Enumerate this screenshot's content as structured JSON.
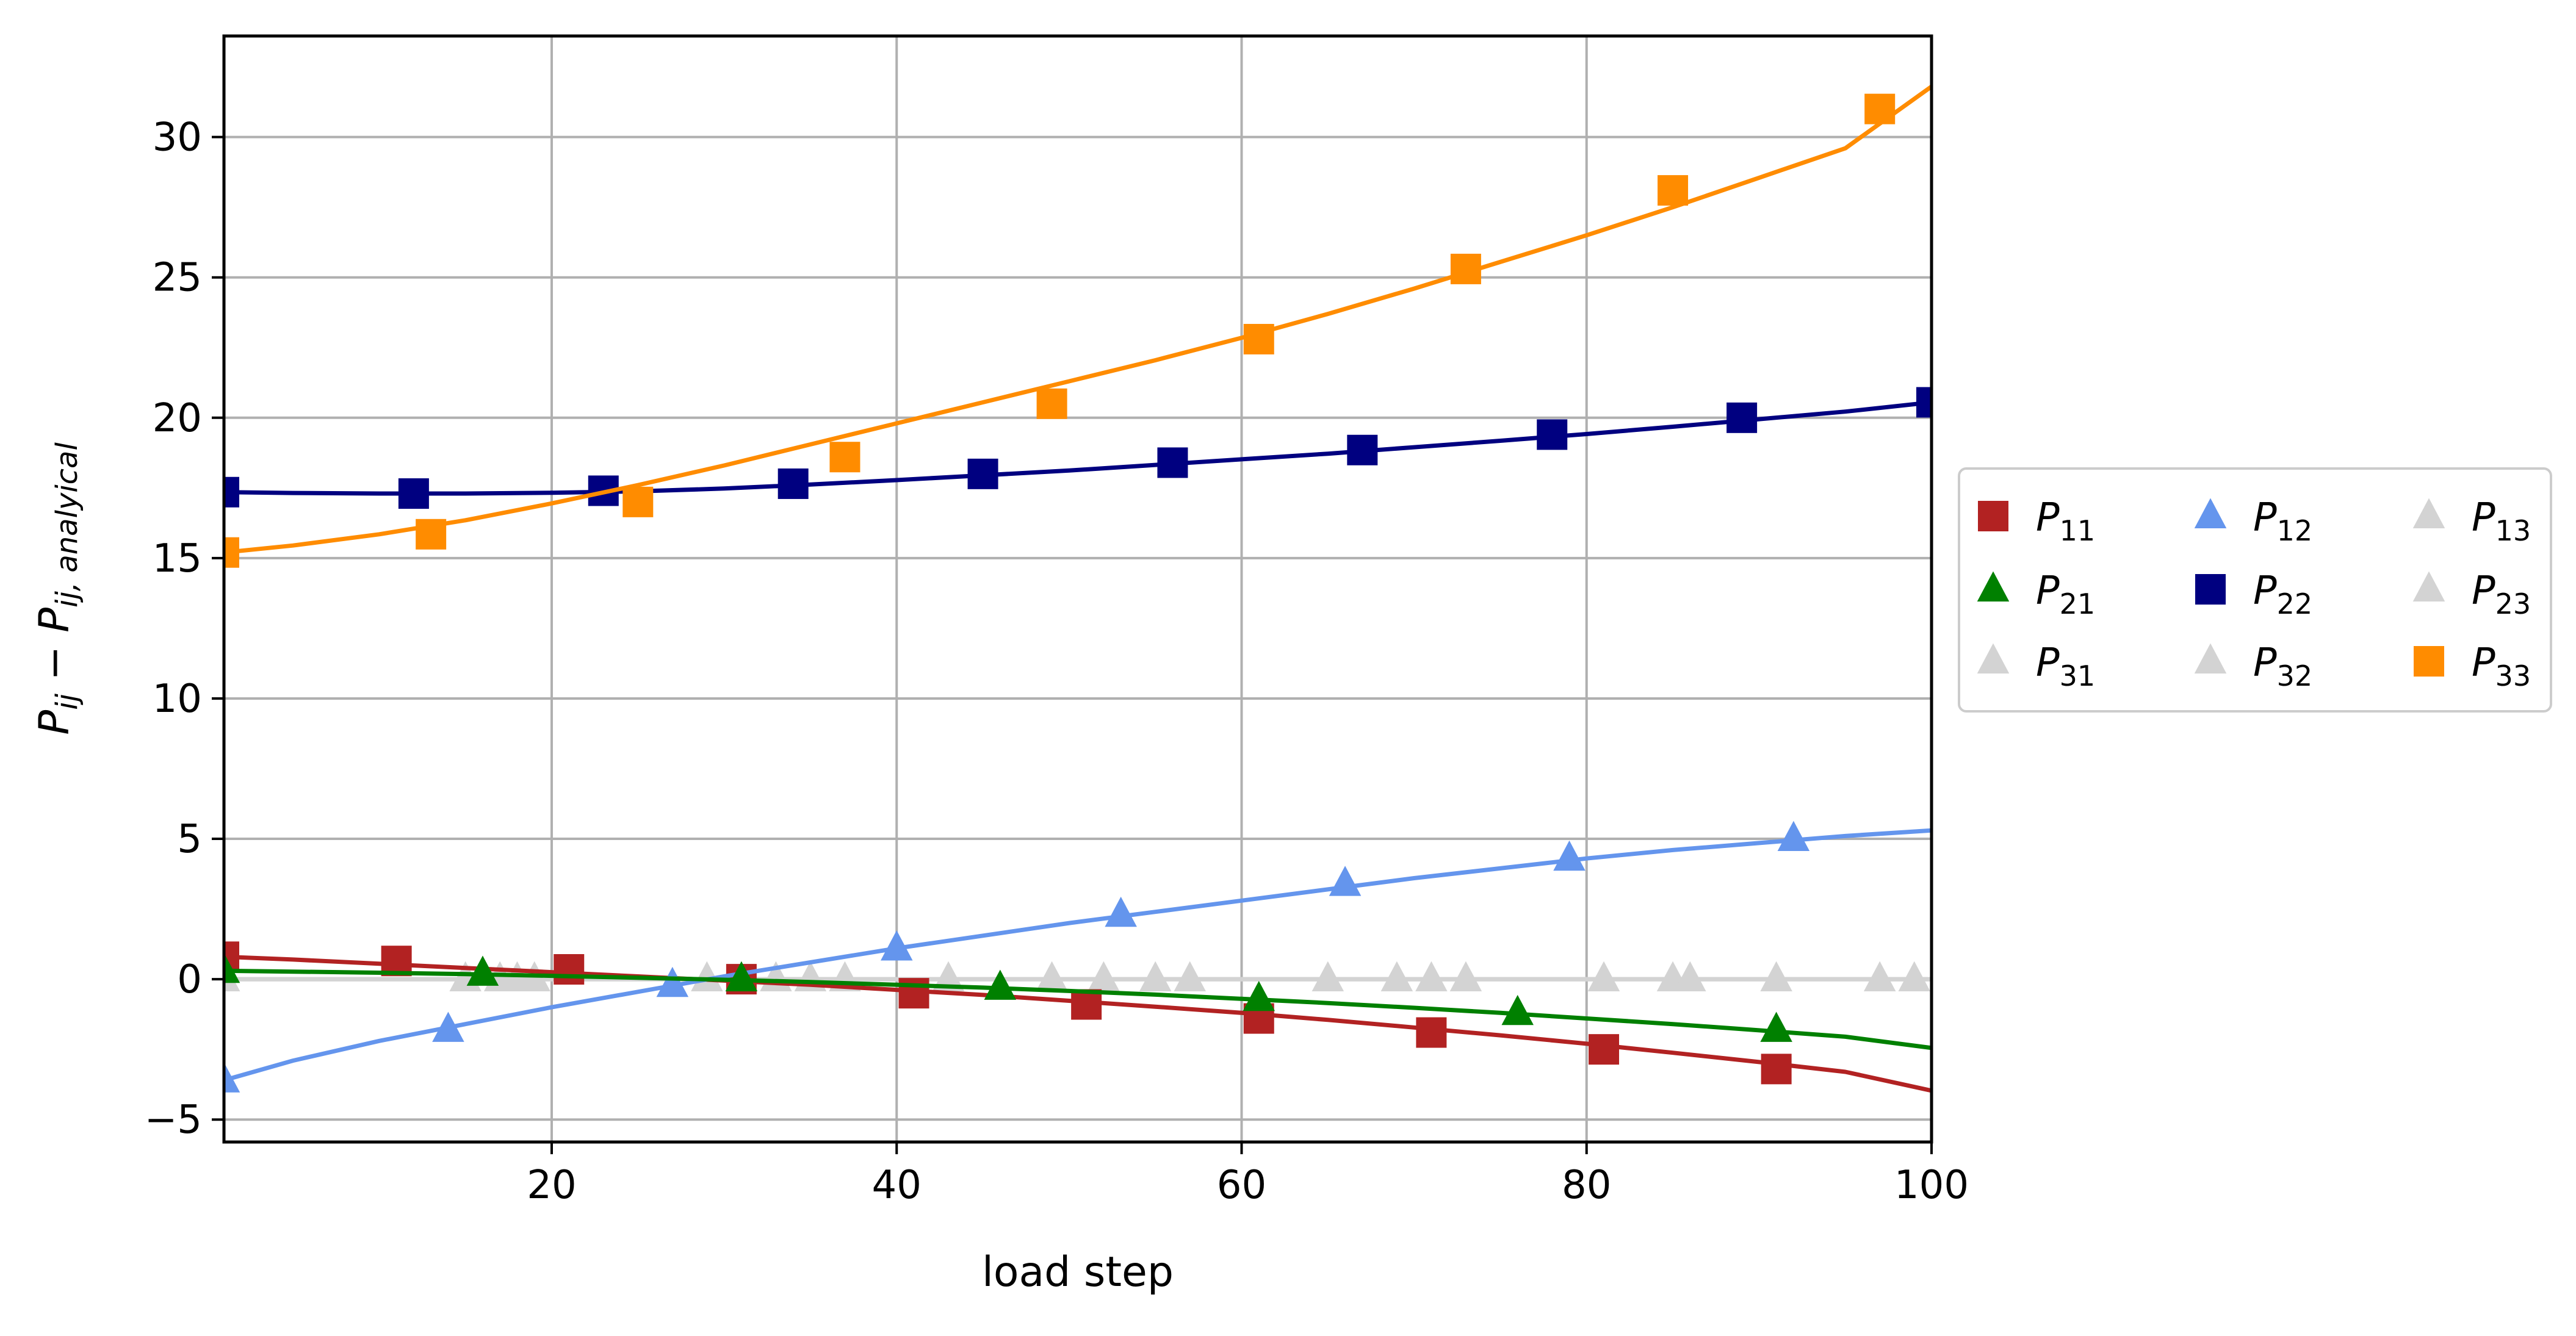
{
  "chart_data": {
    "type": "line",
    "xlabel": "load step",
    "ylabel": "P_ij − P_ij,analyical",
    "xlim": [
      1,
      100
    ],
    "ylim": [
      -5.8,
      33.6
    ],
    "xticks": [
      20,
      40,
      60,
      80,
      100
    ],
    "yticks": [
      -5,
      0,
      5,
      10,
      15,
      20,
      25,
      30
    ],
    "grid": true,
    "legend_placement": "right, outside plot area, 3 columns",
    "legend_columns": 3,
    "x": [
      1,
      5,
      10,
      15,
      20,
      25,
      30,
      35,
      40,
      45,
      50,
      55,
      60,
      65,
      70,
      75,
      80,
      85,
      90,
      95,
      100
    ],
    "series": [
      {
        "name": "P11",
        "label_main": "P",
        "label_sub": "11",
        "color": "#b22222",
        "marker": "square",
        "values": [
          0.8,
          0.7,
          0.55,
          0.4,
          0.25,
          0.1,
          -0.05,
          -0.2,
          -0.38,
          -0.56,
          -0.77,
          -0.98,
          -1.2,
          -1.45,
          -1.72,
          -2.0,
          -2.3,
          -2.62,
          -2.95,
          -3.3,
          -3.97
        ],
        "markers_x": [
          1,
          11,
          21,
          31,
          41,
          51,
          61,
          71,
          81,
          91
        ],
        "markers_y": [
          0.8,
          0.65,
          0.35,
          0.0,
          -0.5,
          -0.9,
          -1.4,
          -1.9,
          -2.5,
          -3.2
        ]
      },
      {
        "name": "P12",
        "label_main": "P",
        "label_sub": "12",
        "color": "#6495ed",
        "marker": "triangle",
        "values": [
          -3.6,
          -2.9,
          -2.2,
          -1.6,
          -1.0,
          -0.45,
          0.1,
          0.6,
          1.1,
          1.55,
          2.0,
          2.4,
          2.8,
          3.2,
          3.6,
          3.95,
          4.3,
          4.6,
          4.85,
          5.1,
          5.3
        ],
        "markers_x": [
          1,
          14,
          27,
          40,
          53,
          66,
          79,
          92
        ],
        "markers_y": [
          -3.6,
          -1.8,
          -0.2,
          1.1,
          2.3,
          3.4,
          4.3,
          5.0
        ]
      },
      {
        "name": "P13",
        "label_main": "P",
        "label_sub": "13",
        "color": "#d3d3d3",
        "marker": "triangle",
        "values": [
          0,
          0,
          0,
          0,
          0,
          0,
          0,
          0,
          0,
          0,
          0,
          0,
          0,
          0,
          0,
          0,
          0,
          0,
          0,
          0,
          0
        ],
        "markers_x": [
          1,
          15,
          29,
          43,
          57,
          71,
          85,
          99
        ],
        "markers_y": [
          0,
          0,
          0,
          0,
          0,
          0,
          0,
          0
        ]
      },
      {
        "name": "P21",
        "label_main": "P",
        "label_sub": "21",
        "color": "#008000",
        "marker": "triangle",
        "values": [
          0.3,
          0.27,
          0.23,
          0.18,
          0.12,
          0.05,
          -0.02,
          -0.1,
          -0.2,
          -0.3,
          -0.42,
          -0.55,
          -0.7,
          -0.85,
          -1.02,
          -1.2,
          -1.4,
          -1.6,
          -1.82,
          -2.05,
          -2.45
        ],
        "markers_x": [
          1,
          16,
          31,
          46,
          61,
          76,
          91
        ],
        "markers_y": [
          0.3,
          0.2,
          0.0,
          -0.3,
          -0.7,
          -1.2,
          -1.8
        ]
      },
      {
        "name": "P22",
        "label_main": "P",
        "label_sub": "22",
        "color": "#000080",
        "marker": "square",
        "values": [
          17.35,
          17.32,
          17.3,
          17.3,
          17.33,
          17.38,
          17.48,
          17.62,
          17.78,
          17.95,
          18.12,
          18.32,
          18.52,
          18.72,
          18.95,
          19.18,
          19.42,
          19.68,
          19.95,
          20.22,
          20.55
        ],
        "markers_x": [
          1,
          12,
          23,
          34,
          45,
          56,
          67,
          78,
          89,
          100
        ],
        "markers_y": [
          17.35,
          17.3,
          17.4,
          17.65,
          18.0,
          18.4,
          18.85,
          19.4,
          20.0,
          20.55
        ]
      },
      {
        "name": "P23",
        "label_main": "P",
        "label_sub": "23",
        "color": "#d3d3d3",
        "marker": "triangle",
        "values": [
          0,
          0,
          0,
          0,
          0,
          0,
          0,
          0,
          0,
          0,
          0,
          0,
          0,
          0,
          0,
          0,
          0,
          0,
          0,
          0,
          0
        ],
        "markers_x": [
          1,
          18,
          35,
          52,
          69,
          86
        ],
        "markers_y": [
          0,
          0,
          0,
          0,
          0,
          0
        ]
      },
      {
        "name": "P31",
        "label_main": "P",
        "label_sub": "31",
        "color": "#d3d3d3",
        "marker": "triangle",
        "values": [
          0,
          0,
          0,
          0,
          0,
          0,
          0,
          0,
          0,
          0,
          0,
          0,
          0,
          0,
          0,
          0,
          0,
          0,
          0,
          0,
          0
        ],
        "markers_x": [
          1,
          17,
          33,
          49,
          65,
          81,
          97
        ],
        "markers_y": [
          0,
          0,
          0,
          0,
          0,
          0,
          0
        ]
      },
      {
        "name": "P32",
        "label_main": "P",
        "label_sub": "32",
        "color": "#d3d3d3",
        "marker": "triangle",
        "values": [
          0,
          0,
          0,
          0,
          0,
          0,
          0,
          0,
          0,
          0,
          0,
          0,
          0,
          0,
          0,
          0,
          0,
          0,
          0,
          0,
          0
        ],
        "markers_x": [
          1,
          19,
          37,
          55,
          73,
          91
        ],
        "markers_y": [
          0,
          0,
          0,
          0,
          0,
          0
        ]
      },
      {
        "name": "P33",
        "label_main": "P",
        "label_sub": "33",
        "color": "#ff8c00",
        "marker": "square",
        "values": [
          15.2,
          15.45,
          15.85,
          16.35,
          16.95,
          17.6,
          18.3,
          19.05,
          19.8,
          20.55,
          21.3,
          22.05,
          22.85,
          23.7,
          24.6,
          25.55,
          26.5,
          27.5,
          28.55,
          29.6,
          31.8
        ],
        "markers_x": [
          1,
          13,
          25,
          37,
          49,
          61,
          73,
          85,
          97
        ],
        "markers_y": [
          15.2,
          15.85,
          17.0,
          18.6,
          20.5,
          22.8,
          25.3,
          28.1,
          31.0
        ]
      }
    ]
  }
}
